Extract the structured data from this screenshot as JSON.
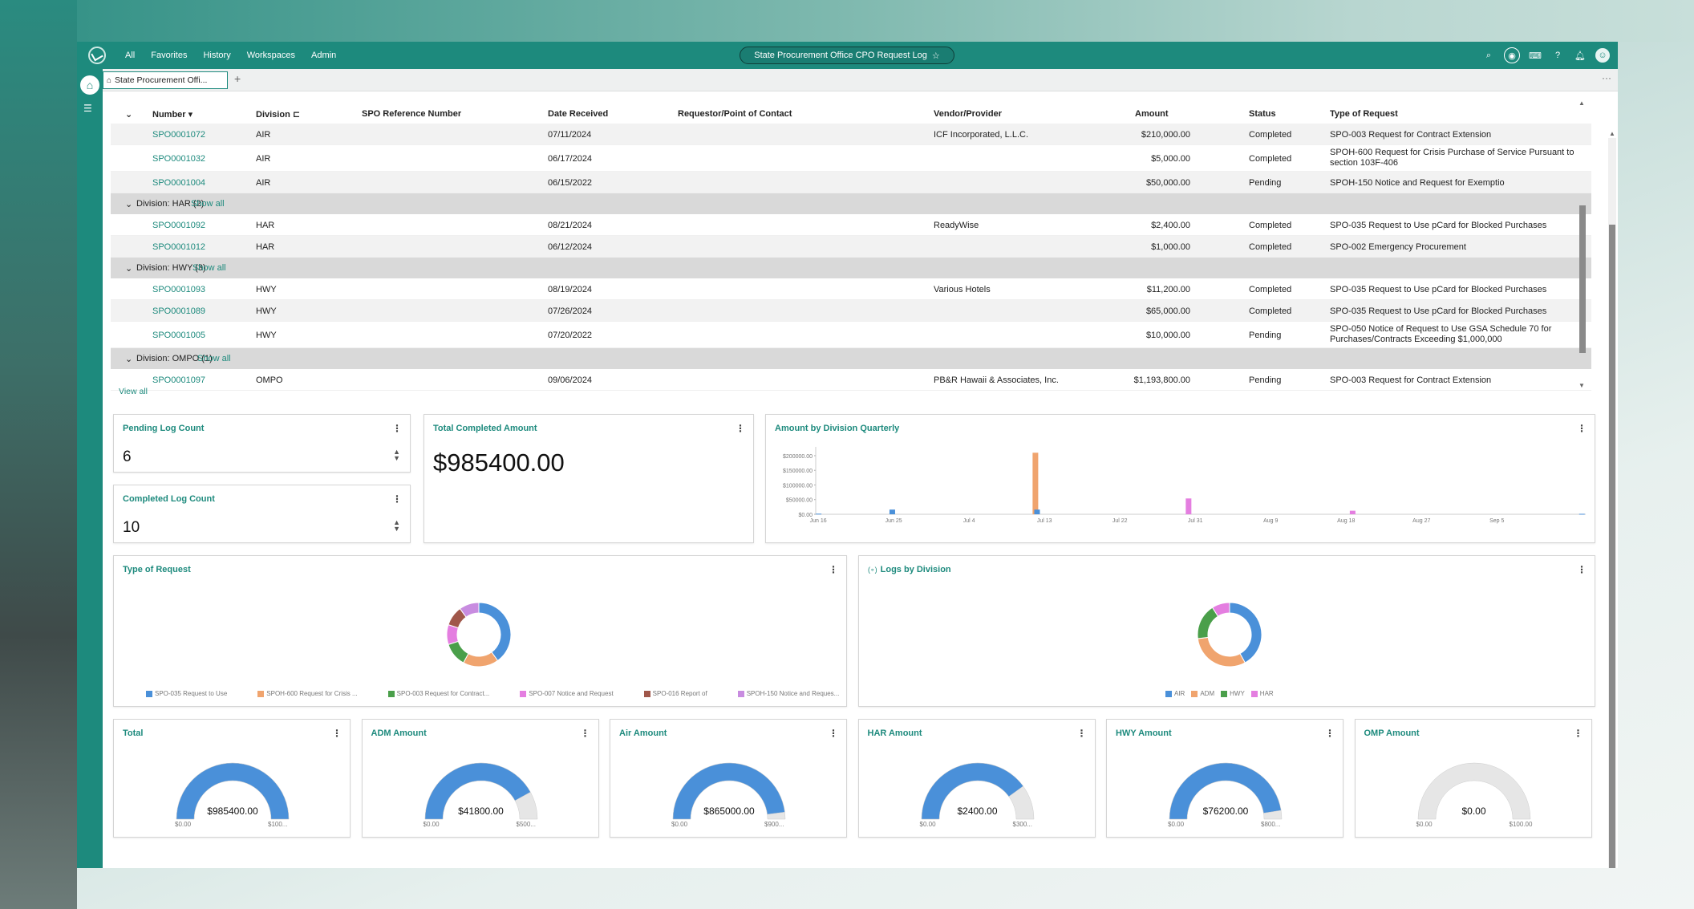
{
  "topbar": {
    "nav": [
      "All",
      "Favorites",
      "History",
      "Workspaces",
      "Admin"
    ],
    "title": "State Procurement Office CPO Request Log",
    "star": "☆"
  },
  "tabs": {
    "active_label": "State Procurement Offi...",
    "add": "+",
    "more": "···"
  },
  "grid": {
    "headers": {
      "number": "Number ▾",
      "division": "Division ⊏",
      "spo_ref": "SPO Reference Number",
      "date": "Date Received",
      "requestor": "Requestor/Point of Contact",
      "vendor": "Vendor/Provider",
      "amount": "Amount",
      "status": "Status",
      "type": "Type of Request"
    },
    "rows": [
      {
        "number": "SPO0001072",
        "division": "AIR",
        "date": "07/11/2024",
        "vendor": "ICF Incorporated, L.L.C.",
        "amount": "$210,000.00",
        "status": "Completed",
        "type": "SPO-003 Request for Contract Extension"
      },
      {
        "number": "SPO0001032",
        "division": "AIR",
        "date": "06/17/2024",
        "vendor": "",
        "amount": "$5,000.00",
        "status": "Completed",
        "type": "SPOH-600 Request for Crisis Purchase of Service Pursuant to section 103F-406"
      },
      {
        "number": "SPO0001004",
        "division": "AIR",
        "date": "06/15/2022",
        "vendor": "",
        "amount": "$50,000.00",
        "status": "Pending",
        "type": "SPOH-150 Notice and Request for Exemptio"
      },
      {
        "number": "SPO0001092",
        "division": "HAR",
        "date": "08/21/2024",
        "vendor": "ReadyWise",
        "amount": "$2,400.00",
        "status": "Completed",
        "type": "SPO-035 Request to Use pCard for Blocked Purchases"
      },
      {
        "number": "SPO0001012",
        "division": "HAR",
        "date": "06/12/2024",
        "vendor": "",
        "amount": "$1,000.00",
        "status": "Completed",
        "type": "SPO-002 Emergency Procurement"
      },
      {
        "number": "SPO0001093",
        "division": "HWY",
        "date": "08/19/2024",
        "vendor": "Various Hotels",
        "amount": "$11,200.00",
        "status": "Completed",
        "type": "SPO-035 Request to Use pCard for Blocked Purchases"
      },
      {
        "number": "SPO0001089",
        "division": "HWY",
        "date": "07/26/2024",
        "vendor": "",
        "amount": "$65,000.00",
        "status": "Completed",
        "type": "SPO-035 Request to Use pCard for Blocked Purchases"
      },
      {
        "number": "SPO0001005",
        "division": "HWY",
        "date": "07/20/2022",
        "vendor": "",
        "amount": "$10,000.00",
        "status": "Pending",
        "type": "SPO-050 Notice of Request to Use GSA Schedule 70 for Purchases/Contracts Exceeding $1,000,000"
      },
      {
        "number": "SPO0001097",
        "division": "OMPO",
        "date": "09/06/2024",
        "vendor": "PB&R Hawaii & Associates, Inc.",
        "amount": "$1,193,800.00",
        "status": "Pending",
        "type": "SPO-003 Request for Contract Extension"
      }
    ],
    "groups": [
      {
        "label": "Division: HAR (2)",
        "show": "Show all"
      },
      {
        "label": "Division: HWY (3)",
        "show": "Show all"
      },
      {
        "label": "Division: OMPO (1)",
        "show": "Show all"
      }
    ],
    "view_all": "View all"
  },
  "cards": {
    "pending": {
      "title": "Pending Log Count",
      "value": "6"
    },
    "completed": {
      "title": "Completed Log Count",
      "value": "10"
    },
    "total_completed": {
      "title": "Total Completed Amount",
      "value": "$985400.00"
    },
    "quarterly": {
      "title": "Amount by Division Quarterly"
    },
    "type_of_request": {
      "title": "Type of Request"
    },
    "logs_by_division": {
      "title": "Logs by Division",
      "prefix": "(∘)"
    }
  },
  "chart_data": [
    {
      "type": "bar",
      "title": "Amount by Division Quarterly",
      "ytick_labels": [
        "$200000.00",
        "$150000.00",
        "$100000.00",
        "$50000.00",
        "$0.00"
      ],
      "xtick_labels": [
        "Jun 16",
        "Jun 25",
        "Jul 4",
        "Jul 13",
        "Jul 22",
        "Jul 31",
        "Aug 9",
        "Aug 18",
        "Aug 27",
        "Sep 5"
      ],
      "ylim": [
        0,
        230000
      ],
      "x_range_days": [
        0,
        92
      ],
      "bars": [
        {
          "day": 0.3,
          "value": 2000,
          "color": "#4a90d9"
        },
        {
          "day": 9.1,
          "value": 16000,
          "color": "#4a90d9"
        },
        {
          "day": 26.2,
          "value": 210000,
          "color": "#f0a46e"
        },
        {
          "day": 26.4,
          "value": 16000,
          "color": "#4a90d9"
        },
        {
          "day": 44.5,
          "value": 54000,
          "color": "#e47ee0"
        },
        {
          "day": 64.1,
          "value": 12000,
          "color": "#e47ee0"
        },
        {
          "day": 91.5,
          "value": 1500,
          "color": "#4a90d9"
        }
      ]
    },
    {
      "type": "pie",
      "title": "Type of Request",
      "labels": [
        "SPO-035 Request to Use",
        "SPOH-600 Request for Crisis ...",
        "SPO-003 Request for Contract...",
        "SPO-007 Notice and Request",
        "SPO-016 Report of",
        "SPOH-150 Notice and Reques..."
      ],
      "values": [
        40,
        18,
        12,
        10,
        10,
        10
      ],
      "colors": [
        "#4a90d9",
        "#f0a46e",
        "#4a9f4a",
        "#e47ee0",
        "#a0574a",
        "#c88ce0"
      ]
    },
    {
      "type": "pie",
      "title": "Logs by Division",
      "labels": [
        "AIR",
        "ADM",
        "HWY",
        "HAR"
      ],
      "values": [
        42,
        31,
        18,
        9
      ],
      "colors": [
        "#4a90d9",
        "#f0a46e",
        "#4a9f4a",
        "#e47ee0"
      ]
    }
  ],
  "gauges": [
    {
      "title": "Total",
      "value": "$985400.00",
      "min": "$0.00",
      "max": "$100...",
      "fill": 1.0
    },
    {
      "title": "ADM Amount",
      "value": "$41800.00",
      "min": "$0.00",
      "max": "$500...",
      "fill": 0.84
    },
    {
      "title": "Air Amount",
      "value": "$865000.00",
      "min": "$0.00",
      "max": "$900...",
      "fill": 0.96
    },
    {
      "title": "HAR Amount",
      "value": "$2400.00",
      "min": "$0.00",
      "max": "$300...",
      "fill": 0.8
    },
    {
      "title": "HWY Amount",
      "value": "$76200.00",
      "min": "$0.00",
      "max": "$800...",
      "fill": 0.95
    },
    {
      "title": "OMP Amount",
      "value": "$0.00",
      "min": "$0.00",
      "max": "$100.00",
      "fill": 0.0
    }
  ],
  "colors": {
    "brand": "#1d8a7d",
    "gauge_fill": "#4a90d9",
    "gauge_track": "#e6e6e6"
  }
}
